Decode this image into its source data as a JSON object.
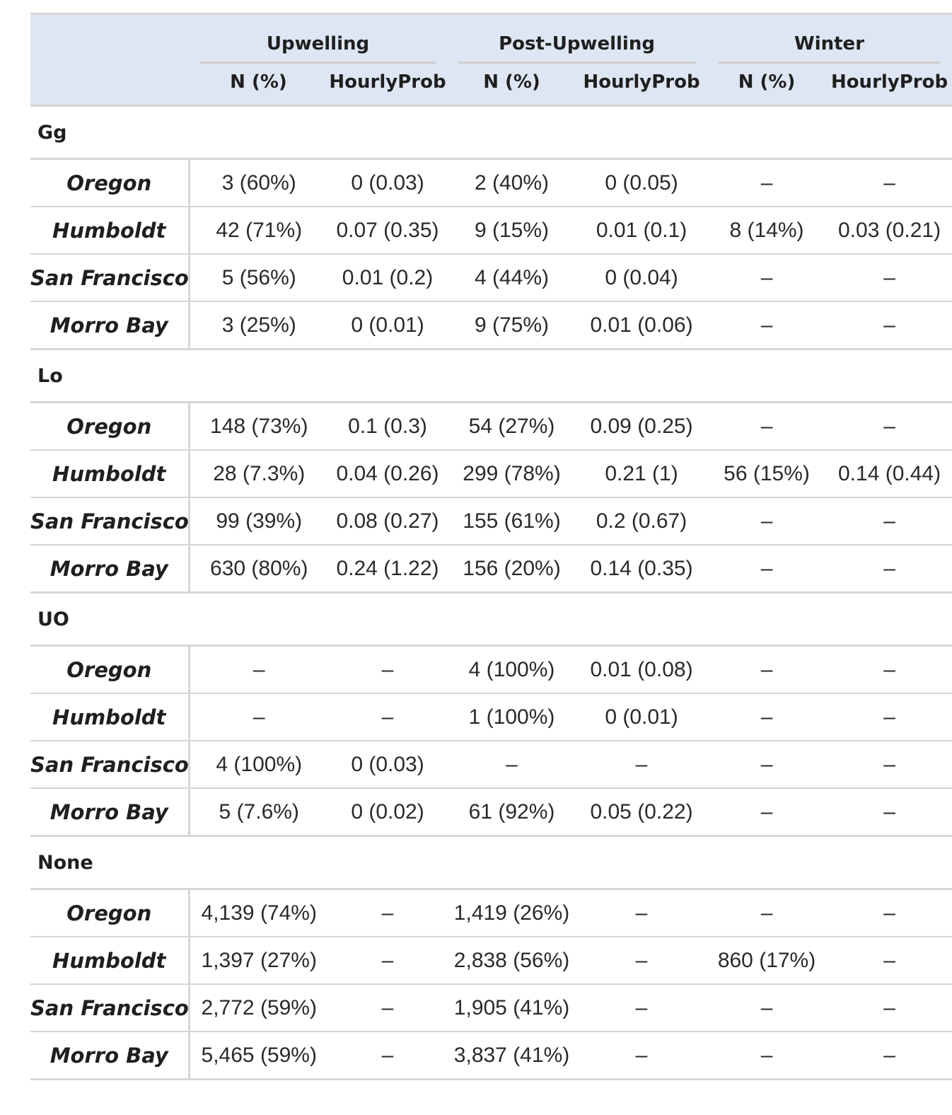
{
  "header": {
    "spanners": [
      "Upwelling",
      "Post-Upwelling",
      "Winter"
    ],
    "columns": [
      "N (%)",
      "HourlyProb",
      "N (%)",
      "HourlyProb",
      "N (%)",
      "HourlyProb"
    ]
  },
  "groups": [
    {
      "label": "Gg",
      "rows": [
        {
          "site": "Oregon",
          "cells": [
            "3 (60%)",
            "0 (0.03)",
            "2 (40%)",
            "0 (0.05)",
            "–",
            "–"
          ]
        },
        {
          "site": "Humboldt",
          "cells": [
            "42 (71%)",
            "0.07 (0.35)",
            "9 (15%)",
            "0.01 (0.1)",
            "8 (14%)",
            "0.03 (0.21)"
          ]
        },
        {
          "site": "San Francisco",
          "cells": [
            "5 (56%)",
            "0.01 (0.2)",
            "4 (44%)",
            "0 (0.04)",
            "–",
            "–"
          ]
        },
        {
          "site": "Morro Bay",
          "cells": [
            "3 (25%)",
            "0 (0.01)",
            "9 (75%)",
            "0.01 (0.06)",
            "–",
            "–"
          ]
        }
      ]
    },
    {
      "label": "Lo",
      "rows": [
        {
          "site": "Oregon",
          "cells": [
            "148 (73%)",
            "0.1 (0.3)",
            "54 (27%)",
            "0.09 (0.25)",
            "–",
            "–"
          ]
        },
        {
          "site": "Humboldt",
          "cells": [
            "28 (7.3%)",
            "0.04 (0.26)",
            "299 (78%)",
            "0.21 (1)",
            "56 (15%)",
            "0.14 (0.44)"
          ]
        },
        {
          "site": "San Francisco",
          "cells": [
            "99 (39%)",
            "0.08 (0.27)",
            "155 (61%)",
            "0.2 (0.67)",
            "–",
            "–"
          ]
        },
        {
          "site": "Morro Bay",
          "cells": [
            "630 (80%)",
            "0.24 (1.22)",
            "156 (20%)",
            "0.14 (0.35)",
            "–",
            "–"
          ]
        }
      ]
    },
    {
      "label": "UO",
      "rows": [
        {
          "site": "Oregon",
          "cells": [
            "–",
            "–",
            "4 (100%)",
            "0.01 (0.08)",
            "–",
            "–"
          ]
        },
        {
          "site": "Humboldt",
          "cells": [
            "–",
            "–",
            "1 (100%)",
            "0 (0.01)",
            "–",
            "–"
          ]
        },
        {
          "site": "San Francisco",
          "cells": [
            "4 (100%)",
            "0 (0.03)",
            "–",
            "–",
            "–",
            "–"
          ]
        },
        {
          "site": "Morro Bay",
          "cells": [
            "5 (7.6%)",
            "0 (0.02)",
            "61 (92%)",
            "0.05 (0.22)",
            "–",
            "–"
          ]
        }
      ]
    },
    {
      "label": "None",
      "rows": [
        {
          "site": "Oregon",
          "cells": [
            "4,139 (74%)",
            "–",
            "1,419 (26%)",
            "–",
            "–",
            "–"
          ]
        },
        {
          "site": "Humboldt",
          "cells": [
            "1,397 (27%)",
            "–",
            "2,838 (56%)",
            "–",
            "860 (17%)",
            "–"
          ]
        },
        {
          "site": "San Francisco",
          "cells": [
            "2,772 (59%)",
            "–",
            "1,905 (41%)",
            "–",
            "–",
            "–"
          ]
        },
        {
          "site": "Morro Bay",
          "cells": [
            "5,465 (59%)",
            "–",
            "3,837 (41%)",
            "–",
            "–",
            "–"
          ]
        }
      ]
    }
  ]
}
